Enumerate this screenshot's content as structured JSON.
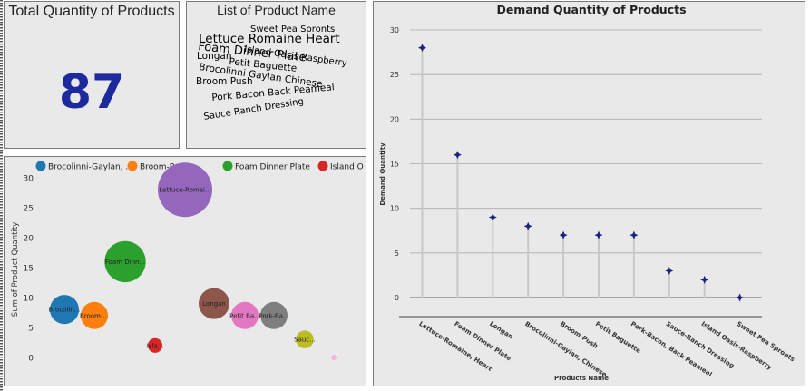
{
  "kpi": {
    "title": "Total Quantity of Products",
    "value": "87"
  },
  "word_cloud": {
    "title": "List of Product Name",
    "words": [
      {
        "text": "Sweet Pea Spronts",
        "color": "#2ca02c"
      },
      {
        "text": "Lettuce Romaine Heart",
        "color": "#1f77b4"
      },
      {
        "text": "Island Oasis Raspberry",
        "color": "#2f7f7f"
      },
      {
        "text": "Foam Dinner Plate",
        "color": "#1f3f7f"
      },
      {
        "text": "Longan",
        "color": "#e07020"
      },
      {
        "text": "Petit Baguette",
        "color": "#9467bd"
      },
      {
        "text": "Brocolinni Gaylan Chinese",
        "color": "#7b4fa0"
      },
      {
        "text": "Broom Push",
        "color": "#e377c2"
      },
      {
        "text": "Pork Bacon Back Peameal",
        "color": "#c8a000"
      },
      {
        "text": "Sauce Ranch Dressing",
        "color": "#d62728"
      }
    ]
  },
  "chart_data": [
    {
      "type": "scatter",
      "subtype": "bubble",
      "title": "",
      "ylabel": "Sum of Product Quantity",
      "ylim": [
        0,
        30
      ],
      "yticks": [
        0,
        5,
        10,
        15,
        20,
        25,
        30
      ],
      "legend": {
        "placement": "top",
        "entries": [
          {
            "label": "Brocolinni-Gaylan, ...",
            "color": "#1f77b4"
          },
          {
            "label": "Broom-Push",
            "color": "#ff7f0e"
          },
          {
            "label": "Foam Dinner Plate",
            "color": "#2ca02c"
          },
          {
            "label": "Island O",
            "color": "#d62728"
          }
        ]
      },
      "points": [
        {
          "label": "Lettuce-Romai...",
          "value": 28,
          "color": "#9467bd"
        },
        {
          "label": "Foam Dinn...",
          "value": 16,
          "color": "#2ca02c"
        },
        {
          "label": "Longan",
          "value": 9,
          "color": "#8c564b"
        },
        {
          "label": "Brocolin...",
          "value": 8,
          "color": "#1f77b4"
        },
        {
          "label": "Broom-...",
          "value": 7,
          "color": "#ff7f0e"
        },
        {
          "label": "Petit Ba...",
          "value": 7,
          "color": "#e377c2"
        },
        {
          "label": "Pork-Ba...",
          "value": 7,
          "color": "#7f7f7f"
        },
        {
          "label": "Sauc...",
          "value": 3,
          "color": "#bcbd22"
        },
        {
          "label": "Isla...",
          "value": 2,
          "color": "#d62728"
        },
        {
          "label": "",
          "value": 0,
          "color": "#f7b6d2"
        }
      ]
    },
    {
      "type": "lollipop",
      "title": "Demand Quantity of Products",
      "xlabel": "Products Name",
      "ylabel": "Demand Quantity",
      "ylim": [
        0,
        30
      ],
      "yticks": [
        0,
        5,
        10,
        15,
        20,
        25,
        30
      ],
      "grid": true,
      "marker_color": "#1a237e",
      "stem_color": "#c8c8c8",
      "categories": [
        "Lettuce-Romaine, Heart",
        "Foam Dinner Plate",
        "Longan",
        "Brocolinni-Gaylan, Chinese",
        "Broom-Push",
        "Petit Baguette",
        "Pork-Bacon, Back Peameal",
        "Sauce-Ranch Dressing",
        "Island Oasis-Raspberry",
        "Sweet Pea Spronts"
      ],
      "values": [
        28,
        16,
        9,
        8,
        7,
        7,
        7,
        3,
        2,
        0
      ]
    }
  ]
}
